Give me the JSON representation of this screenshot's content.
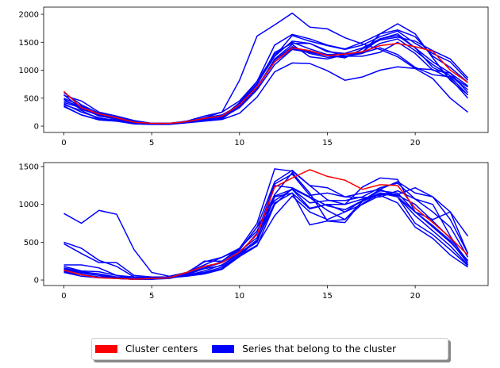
{
  "colors": {
    "center": "#ff0000",
    "series": "#0000ff"
  },
  "legend": {
    "placement": "bottom-center",
    "items": [
      {
        "label": "Cluster centers",
        "color": "#ff0000"
      },
      {
        "label": "Series that belong to the cluster",
        "color": "#0000ff"
      }
    ]
  },
  "chart_data": [
    {
      "type": "line",
      "title": "",
      "xlabel": "",
      "ylabel": "",
      "xlim": [
        -1.15,
        24.15
      ],
      "ylim": [
        -113,
        2128
      ],
      "grid": false,
      "x_ticks": [
        "0",
        "5",
        "10",
        "15",
        "20"
      ],
      "y_ticks": [
        "0",
        "500",
        "1000",
        "1500",
        "2000"
      ],
      "center": [
        620,
        330,
        220,
        150,
        70,
        50,
        50,
        80,
        140,
        180,
        380,
        700,
        1150,
        1400,
        1350,
        1260,
        1290,
        1330,
        1440,
        1480,
        1420,
        1340,
        1000,
        780
      ],
      "series": [
        [
          450,
          350,
          200,
          150,
          80,
          50,
          40,
          70,
          150,
          250,
          820,
          1610,
          1810,
          2020,
          1770,
          1740,
          1580,
          1470,
          1370,
          1240,
          1030,
          850,
          500,
          250
        ],
        [
          360,
          200,
          120,
          90,
          40,
          30,
          30,
          60,
          90,
          120,
          230,
          520,
          970,
          1130,
          1120,
          990,
          820,
          880,
          1000,
          1060,
          1030,
          1010,
          850,
          500
        ],
        [
          600,
          380,
          230,
          160,
          80,
          50,
          50,
          80,
          130,
          170,
          400,
          760,
          1250,
          1520,
          1480,
          1330,
          1300,
          1400,
          1560,
          1620,
          1400,
          1150,
          950,
          720
        ],
        [
          550,
          450,
          250,
          180,
          100,
          50,
          40,
          90,
          180,
          250,
          450,
          800,
          1450,
          1640,
          1560,
          1450,
          1380,
          1500,
          1650,
          1720,
          1600,
          1250,
          1050,
          780
        ],
        [
          480,
          300,
          200,
          120,
          60,
          40,
          40,
          70,
          120,
          140,
          350,
          700,
          1180,
          1420,
          1300,
          1230,
          1250,
          1300,
          1480,
          1560,
          1350,
          1100,
          900,
          650
        ],
        [
          400,
          250,
          150,
          100,
          60,
          50,
          50,
          70,
          110,
          150,
          330,
          650,
          1100,
          1370,
          1320,
          1260,
          1240,
          1320,
          1650,
          1830,
          1650,
          1220,
          820,
          560
        ],
        [
          350,
          200,
          110,
          90,
          50,
          40,
          40,
          60,
          100,
          130,
          360,
          690,
          1150,
          1380,
          1330,
          1270,
          1220,
          1380,
          1540,
          1590,
          1520,
          1350,
          1200,
          860
        ],
        [
          380,
          280,
          130,
          110,
          70,
          40,
          40,
          70,
          110,
          160,
          420,
          800,
          1290,
          1500,
          1380,
          1280,
          1290,
          1330,
          1560,
          1650,
          1400,
          1050,
          900,
          700
        ],
        [
          420,
          330,
          180,
          130,
          60,
          50,
          40,
          70,
          130,
          170,
          380,
          740,
          1320,
          1480,
          1480,
          1350,
          1250,
          1250,
          1320,
          1500,
          1300,
          1000,
          950,
          600
        ],
        [
          500,
          360,
          200,
          150,
          70,
          50,
          50,
          80,
          150,
          200,
          370,
          760,
          1250,
          1620,
          1520,
          1440,
          1370,
          1450,
          1600,
          1700,
          1480,
          1300,
          1150,
          820
        ],
        [
          560,
          310,
          190,
          120,
          60,
          40,
          50,
          90,
          150,
          180,
          340,
          680,
          1200,
          1460,
          1240,
          1200,
          1280,
          1310,
          1400,
          1280,
          1050,
          920,
          880,
          560
        ]
      ]
    },
    {
      "type": "line",
      "title": "",
      "xlabel": "",
      "ylabel": "",
      "xlim": [
        -1.15,
        24.15
      ],
      "ylim": [
        -73,
        1553
      ],
      "grid": false,
      "x_ticks": [
        "0",
        "5",
        "10",
        "15",
        "20"
      ],
      "y_ticks": [
        "0",
        "500",
        "1000",
        "1500"
      ],
      "center": [
        130,
        70,
        30,
        20,
        10,
        20,
        30,
        100,
        180,
        230,
        370,
        600,
        1230,
        1350,
        1460,
        1370,
        1320,
        1200,
        1260,
        1250,
        950,
        760,
        560,
        330
      ],
      "series": [
        [
          880,
          750,
          920,
          870,
          400,
          100,
          50,
          100,
          200,
          300,
          400,
          700,
          1050,
          1200,
          950,
          1000,
          900,
          1050,
          1150,
          1100,
          900,
          800,
          900,
          350
        ],
        [
          500,
          420,
          260,
          180,
          40,
          30,
          30,
          80,
          150,
          250,
          400,
          700,
          1300,
          1450,
          1250,
          1220,
          1100,
          1150,
          1200,
          1300,
          1150,
          1100,
          900,
          580
        ],
        [
          480,
          350,
          230,
          230,
          60,
          40,
          40,
          90,
          250,
          250,
          420,
          750,
          1470,
          1440,
          1250,
          1060,
          1000,
          1230,
          1350,
          1330,
          900,
          700,
          500,
          260
        ],
        [
          200,
          200,
          160,
          60,
          40,
          30,
          40,
          100,
          240,
          300,
          420,
          650,
          1130,
          1420,
          1150,
          780,
          800,
          1010,
          1150,
          1130,
          1220,
          1100,
          800,
          350
        ],
        [
          180,
          120,
          110,
          60,
          20,
          30,
          40,
          80,
          160,
          230,
          380,
          560,
          1110,
          1200,
          1020,
          1050,
          1050,
          1100,
          1220,
          1280,
          1070,
          1000,
          580,
          220
        ],
        [
          150,
          100,
          80,
          20,
          10,
          10,
          20,
          70,
          100,
          170,
          330,
          520,
          1020,
          1150,
          730,
          780,
          760,
          1050,
          1200,
          1100,
          850,
          650,
          450,
          200
        ],
        [
          140,
          90,
          60,
          30,
          20,
          20,
          30,
          60,
          90,
          150,
          330,
          460,
          850,
          1110,
          900,
          800,
          900,
          1000,
          1120,
          1020,
          700,
          550,
          330,
          170
        ],
        [
          120,
          70,
          40,
          20,
          10,
          10,
          30,
          50,
          80,
          140,
          310,
          450,
          1000,
          1210,
          1090,
          920,
          800,
          1040,
          1150,
          1100,
          750,
          600,
          400,
          190
        ],
        [
          110,
          70,
          40,
          30,
          10,
          20,
          30,
          70,
          150,
          190,
          350,
          530,
          1250,
          1220,
          1100,
          980,
          930,
          1050,
          1180,
          1150,
          900,
          720,
          520,
          220
        ],
        [
          160,
          110,
          80,
          40,
          20,
          20,
          30,
          80,
          180,
          230,
          350,
          620,
          1270,
          1400,
          1120,
          1150,
          1100,
          1090,
          1100,
          1180,
          1070,
          900,
          700,
          300
        ],
        [
          100,
          50,
          30,
          20,
          10,
          20,
          30,
          60,
          120,
          200,
          350,
          500,
          1100,
          1150,
          940,
          1000,
          1000,
          1070,
          1130,
          1120,
          1000,
          780,
          550,
          250
        ]
      ]
    }
  ]
}
